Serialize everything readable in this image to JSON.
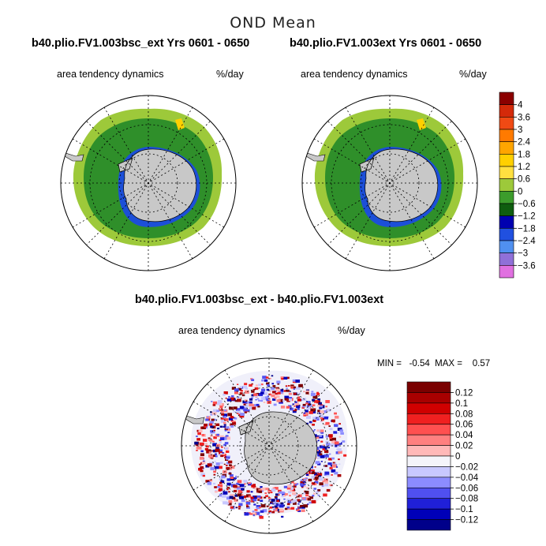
{
  "figure": {
    "title": "OND Mean",
    "left_panel": {
      "run_title": "b40.plio.FV1.003bsc_ext  Yrs 0601 - 0650",
      "variable": "area tendency dynamics",
      "units": "%/day"
    },
    "right_panel": {
      "run_title": "b40.plio.FV1.003ext  Yrs 0601 - 0650",
      "variable": "area tendency dynamics",
      "units": "%/day"
    },
    "diff_panel": {
      "run_title": "b40.plio.FV1.003bsc_ext - b40.plio.FV1.003ext",
      "variable": "area tendency dynamics",
      "units": "%/day",
      "stats": "MIN =   -0.54  MAX =    0.57"
    }
  },
  "chart_data": [
    {
      "type": "heatmap",
      "projection": "south-polar-stereographic",
      "title": "b40.plio.FV1.003bsc_ext  Yrs 0601 - 0650",
      "subtitle": "area tendency dynamics",
      "units": "%/day",
      "colorbar_ticks": [
        "4",
        "3.6",
        "3",
        "2.4",
        "1.8",
        "1.2",
        "0.6",
        "0",
        "−0.6",
        "−1.2",
        "−1.8",
        "−2.4",
        "−3",
        "−3.6"
      ],
      "colorbar_colors": [
        "#8b0000",
        "#d42a0a",
        "#f04a14",
        "#ff7a00",
        "#ffa500",
        "#ffd000",
        "#ffe040",
        "#9dc93a",
        "#3c9c2c",
        "#0f5d0f",
        "#0000b0",
        "#2050e0",
        "#5090f0",
        "#9070d8",
        "#e070e0"
      ],
      "grid": true
    },
    {
      "type": "heatmap",
      "projection": "south-polar-stereographic",
      "title": "b40.plio.FV1.003ext  Yrs 0601 - 0650",
      "subtitle": "area tendency dynamics",
      "units": "%/day",
      "colorbar_ticks": [
        "4",
        "3.6",
        "3",
        "2.4",
        "1.8",
        "1.2",
        "0.6",
        "0",
        "−0.6",
        "−1.2",
        "−1.8",
        "−2.4",
        "−3",
        "−3.6"
      ],
      "grid": true
    },
    {
      "type": "heatmap",
      "projection": "south-polar-stereographic",
      "title": "b40.plio.FV1.003bsc_ext - b40.plio.FV1.003ext",
      "subtitle": "area tendency dynamics",
      "units": "%/day",
      "min": -0.54,
      "max": 0.57,
      "colorbar_ticks": [
        "0.12",
        "0.1",
        "0.08",
        "0.06",
        "0.04",
        "0.02",
        "0",
        "−0.02",
        "−0.04",
        "−0.06",
        "−0.08",
        "−0.1",
        "−0.12"
      ],
      "colorbar_colors": [
        "#7a0000",
        "#a80000",
        "#d00000",
        "#f02020",
        "#ff5050",
        "#ff8080",
        "#ffb8b8",
        "#f4f4fa",
        "#c8c8ff",
        "#8c8cff",
        "#5050f0",
        "#2020d8",
        "#0000b8",
        "#00008a"
      ],
      "grid": true
    }
  ]
}
